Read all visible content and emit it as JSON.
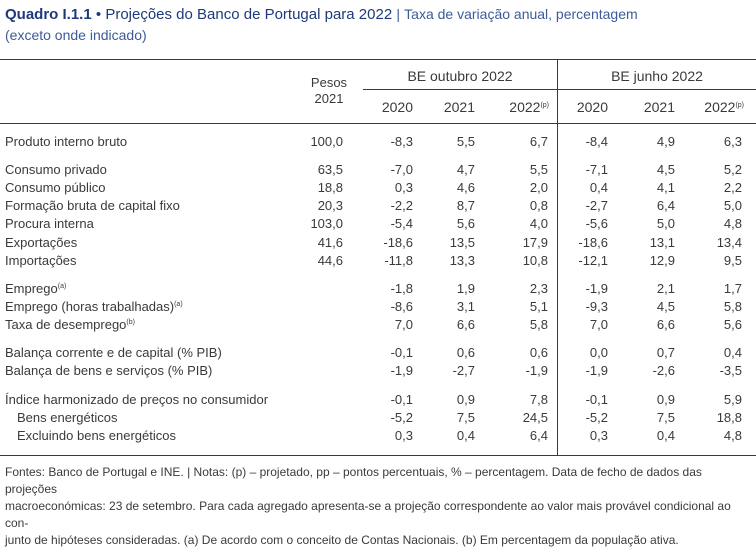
{
  "title": {
    "number": "Quadro I.1.1",
    "bullet": "•",
    "main": "Projeções do Banco de Portugal para 2022",
    "separator": "|",
    "subtitle_line1": "Taxa de variação anual, percentagem",
    "subtitle_line2": "(exceto onde indicado)"
  },
  "header": {
    "weights_line1": "Pesos",
    "weights_line2": "2021",
    "group_october": "BE outubro 2022",
    "group_june": "BE junho 2022",
    "years": [
      "2020",
      "2021",
      "2022"
    ],
    "projected_mark": "(p)"
  },
  "rows": [
    {
      "label": "Produto interno bruto",
      "sup": "",
      "weight": "100,0",
      "oct": [
        "-8,3",
        "5,5",
        "6,7"
      ],
      "jun": [
        "-8,4",
        "4,9",
        "6,3"
      ]
    },
    {
      "label": "Consumo privado",
      "sup": "",
      "weight": "63,5",
      "oct": [
        "-7,0",
        "4,7",
        "5,5"
      ],
      "jun": [
        "-7,1",
        "4,5",
        "5,2"
      ]
    },
    {
      "label": "Consumo público",
      "sup": "",
      "weight": "18,8",
      "oct": [
        "0,3",
        "4,6",
        "2,0"
      ],
      "jun": [
        "0,4",
        "4,1",
        "2,2"
      ]
    },
    {
      "label": "Formação bruta de capital fixo",
      "sup": "",
      "weight": "20,3",
      "oct": [
        "-2,2",
        "8,7",
        "0,8"
      ],
      "jun": [
        "-2,7",
        "6,4",
        "5,0"
      ]
    },
    {
      "label": "Procura interna",
      "sup": "",
      "weight": "103,0",
      "oct": [
        "-5,4",
        "5,6",
        "4,0"
      ],
      "jun": [
        "-5,6",
        "5,0",
        "4,8"
      ]
    },
    {
      "label": "Exportações",
      "sup": "",
      "weight": "41,6",
      "oct": [
        "-18,6",
        "13,5",
        "17,9"
      ],
      "jun": [
        "-18,6",
        "13,1",
        "13,4"
      ]
    },
    {
      "label": "Importações",
      "sup": "",
      "weight": "44,6",
      "oct": [
        "-11,8",
        "13,3",
        "10,8"
      ],
      "jun": [
        "-12,1",
        "12,9",
        "9,5"
      ]
    },
    {
      "label": "Emprego",
      "sup": "(a)",
      "weight": "",
      "oct": [
        "-1,8",
        "1,9",
        "2,3"
      ],
      "jun": [
        "-1,9",
        "2,1",
        "1,7"
      ]
    },
    {
      "label": "Emprego (horas trabalhadas)",
      "sup": "(a)",
      "weight": "",
      "oct": [
        "-8,6",
        "3,1",
        "5,1"
      ],
      "jun": [
        "-9,3",
        "4,5",
        "5,8"
      ]
    },
    {
      "label": "Taxa de desemprego",
      "sup": "(b)",
      "weight": "",
      "oct": [
        "7,0",
        "6,6",
        "5,8"
      ],
      "jun": [
        "7,0",
        "6,6",
        "5,6"
      ]
    },
    {
      "label": "Balança corrente e de capital (% PIB)",
      "sup": "",
      "weight": "",
      "oct": [
        "-0,1",
        "0,6",
        "0,6"
      ],
      "jun": [
        "0,0",
        "0,7",
        "0,4"
      ]
    },
    {
      "label": "Balança de bens e serviços (% PIB)",
      "sup": "",
      "weight": "",
      "oct": [
        "-1,9",
        "-2,7",
        "-1,9"
      ],
      "jun": [
        "-1,9",
        "-2,6",
        "-3,5"
      ]
    },
    {
      "label": "Índice harmonizado de preços no consumidor",
      "sup": "",
      "weight": "",
      "oct": [
        "-0,1",
        "0,9",
        "7,8"
      ],
      "jun": [
        "-0,1",
        "0,9",
        "5,9"
      ]
    },
    {
      "label": "Bens energéticos",
      "sup": "",
      "weight": "",
      "oct": [
        "-5,2",
        "7,5",
        "24,5"
      ],
      "jun": [
        "-5,2",
        "7,5",
        "18,8"
      ]
    },
    {
      "label": "Excluindo bens energéticos",
      "sup": "",
      "weight": "",
      "oct": [
        "0,3",
        "0,4",
        "6,4"
      ],
      "jun": [
        "0,3",
        "0,4",
        "4,8"
      ]
    }
  ],
  "footer": {
    "line1": "Fontes: Banco de Portugal e INE. | Notas: (p) – projetado, pp – pontos percentuais, % – percentagem. Data de fecho de dados das projeções",
    "line2": "macroeconómicas: 23 de setembro. Para cada agregado apresenta-se a projeção correspondente ao valor mais provável condicional ao con-",
    "line3": "junto de hipóteses consideradas. (a) De acordo com o conceito de Contas Nacionais. (b) Em percentagem da população ativa."
  },
  "colors": {
    "title": "#1f3a7a",
    "rule": "#1f3a7a",
    "text": "#3a3a3a"
  }
}
